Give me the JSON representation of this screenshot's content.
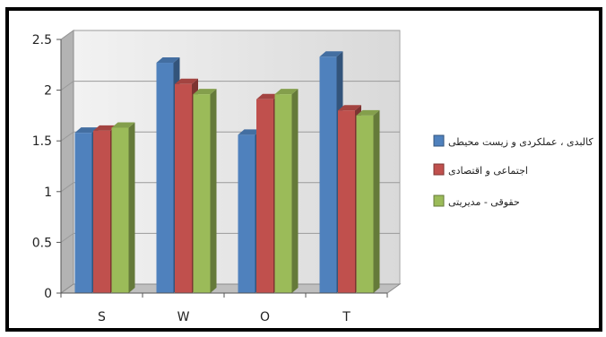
{
  "chart_data": {
    "type": "bar",
    "style": "3d-clustered",
    "title": "",
    "xlabel": "",
    "ylabel": "",
    "categories": [
      "S",
      "W",
      "O",
      "T"
    ],
    "ylim": [
      0,
      2.5
    ],
    "yticks": [
      "0",
      "0.5",
      "1",
      "1.5",
      "2",
      "2.5"
    ],
    "grid": true,
    "legend_position": "right",
    "series": [
      {
        "name": "کالبدی ، عملکردی و زیست محیطی",
        "values": [
          1.58,
          2.27,
          1.56,
          2.33
        ],
        "color": "#4f81bd"
      },
      {
        "name": "اجتماعی و اقتصادی",
        "values": [
          1.6,
          2.06,
          1.91,
          1.8
        ],
        "color": "#c0504d"
      },
      {
        "name": "حقوقی - مدیریتی",
        "values": [
          1.63,
          1.96,
          1.96,
          1.75
        ],
        "color": "#9bbb59"
      }
    ]
  }
}
